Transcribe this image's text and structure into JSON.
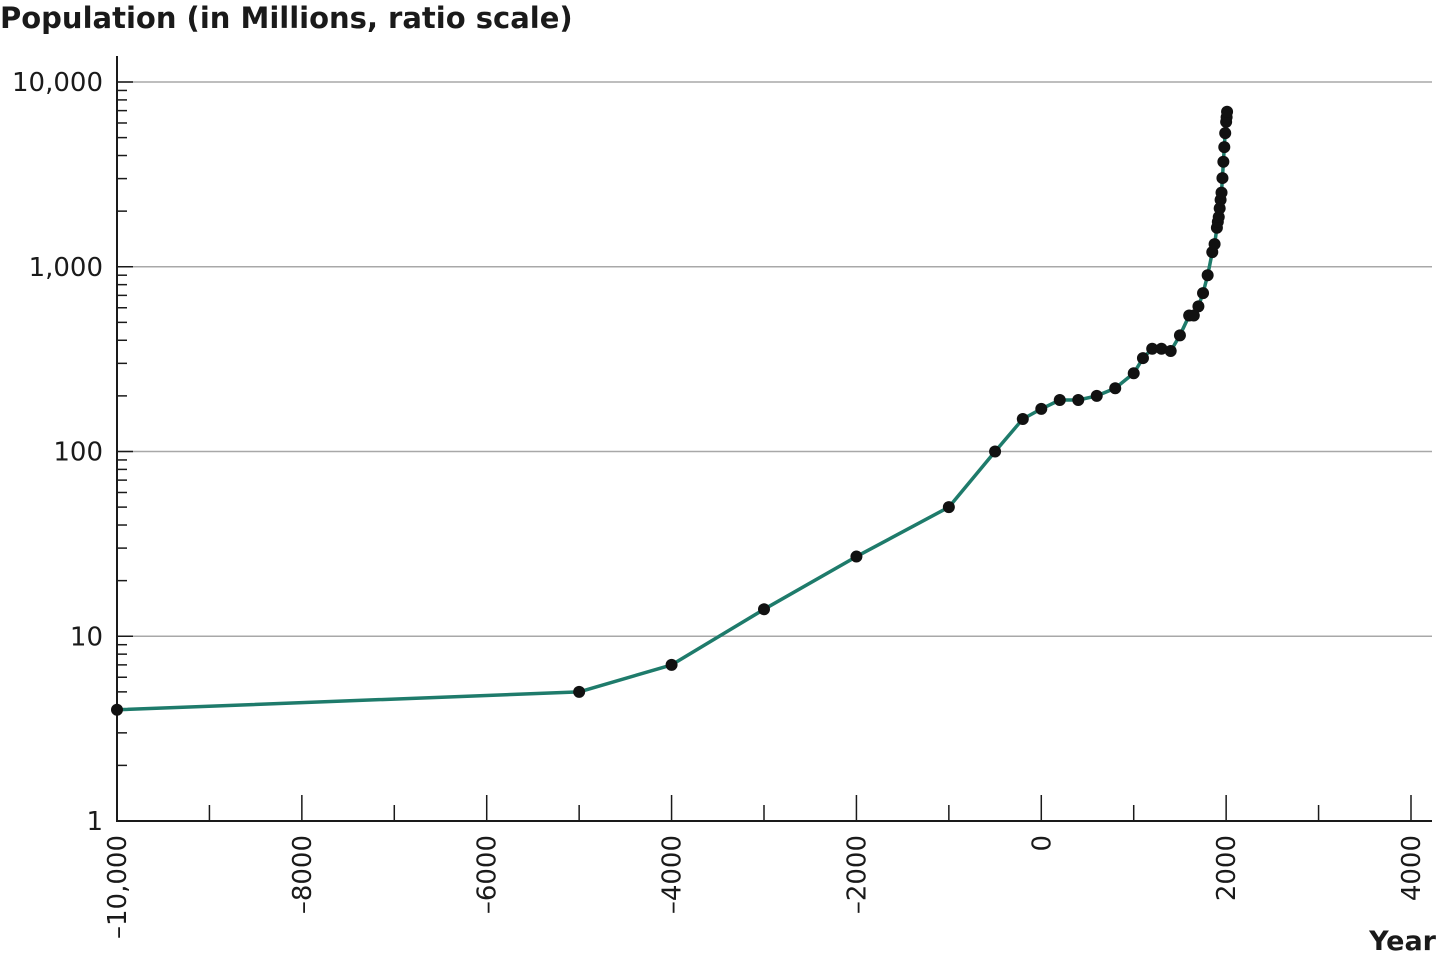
{
  "chart_data": {
    "type": "line",
    "title": "Population (in Millions, ratio scale)",
    "xlabel": "Year",
    "ylabel": "",
    "y_scale": "log",
    "xlim": [
      -10000,
      4000
    ],
    "ylim": [
      1,
      10000
    ],
    "grid": {
      "horizontal": true,
      "vertical": false
    },
    "x_ticks": [
      -10000,
      -8000,
      -6000,
      -4000,
      -2000,
      0,
      2000,
      4000
    ],
    "x_tick_labels": [
      "–10,000",
      "–8000",
      "–6000",
      "–4000",
      "–2000",
      "0",
      "2000",
      "4000"
    ],
    "y_ticks": [
      1,
      10,
      100,
      1000,
      10000
    ],
    "y_tick_labels": [
      "1",
      "10",
      "100",
      "1,000",
      "10,000"
    ],
    "colors": {
      "line": "#1e7b6b",
      "marker": "#111111"
    },
    "series": [
      {
        "x": [
          -10000,
          -5000,
          -4000,
          -3000,
          -2000,
          -1000,
          -500,
          -200,
          0,
          200,
          400,
          600,
          800,
          1000,
          1100,
          1200,
          1300,
          1400,
          1500,
          1600,
          1650,
          1700,
          1750,
          1800,
          1850,
          1875,
          1900,
          1910,
          1920,
          1930,
          1940,
          1950,
          1960,
          1970,
          1980,
          1990,
          2000,
          2005,
          2010
        ],
        "y": [
          4,
          5,
          7,
          14,
          27,
          50,
          100,
          150,
          170,
          190,
          190,
          200,
          220,
          265,
          320,
          360,
          360,
          350,
          425,
          545,
          545,
          610,
          720,
          900,
          1200,
          1325,
          1625,
          1750,
          1860,
          2070,
          2300,
          2520,
          3020,
          3700,
          4440,
          5290,
          6080,
          6450,
          6900
        ]
      }
    ]
  }
}
